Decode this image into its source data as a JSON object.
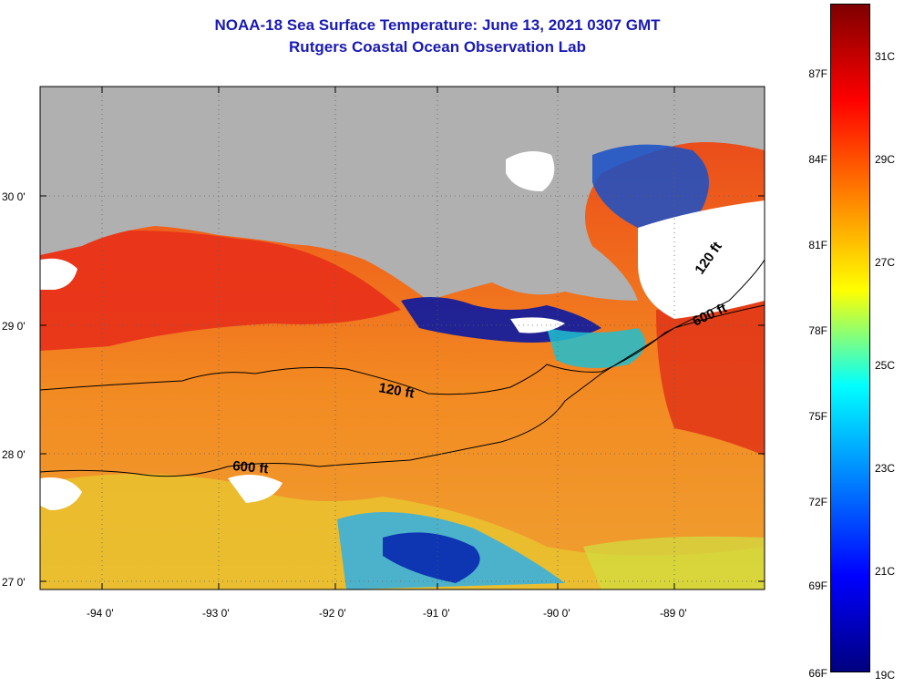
{
  "header": {
    "title": "NOAA-18 Sea Surface Temperature:  June 13, 2021 0307 GMT",
    "subtitle": "Rutgers Coastal Ocean Observation Lab"
  },
  "axes": {
    "lon_labels": [
      "-94 0'",
      "-93 0'",
      "-92 0'",
      "-91 0'",
      "-90 0'",
      "-89 0'"
    ],
    "lat_labels": [
      "30 0'",
      "29 0'",
      "28 0'",
      "27 0'"
    ]
  },
  "contours": {
    "label_120": "120 ft",
    "label_600": "600 ft"
  },
  "colorbar": {
    "fahrenheit": [
      "87F",
      "84F",
      "81F",
      "78F",
      "75F",
      "72F",
      "69F",
      "66F"
    ],
    "celsius": [
      "31C",
      "29C",
      "27C",
      "25C",
      "23C",
      "21C",
      "19C"
    ],
    "colors": [
      "#7f0000",
      "#ff0000",
      "#ff8000",
      "#ffff00",
      "#00ffff",
      "#0080ff",
      "#0000ff",
      "#00007f"
    ]
  },
  "palette": {
    "land": "#b0b0b0",
    "warm": "#f07020",
    "hot": "#e8301a",
    "cool": "#40c0ff",
    "cold": "#0010a0",
    "yellow": "#f0e020",
    "cloud": "#ffffff"
  }
}
